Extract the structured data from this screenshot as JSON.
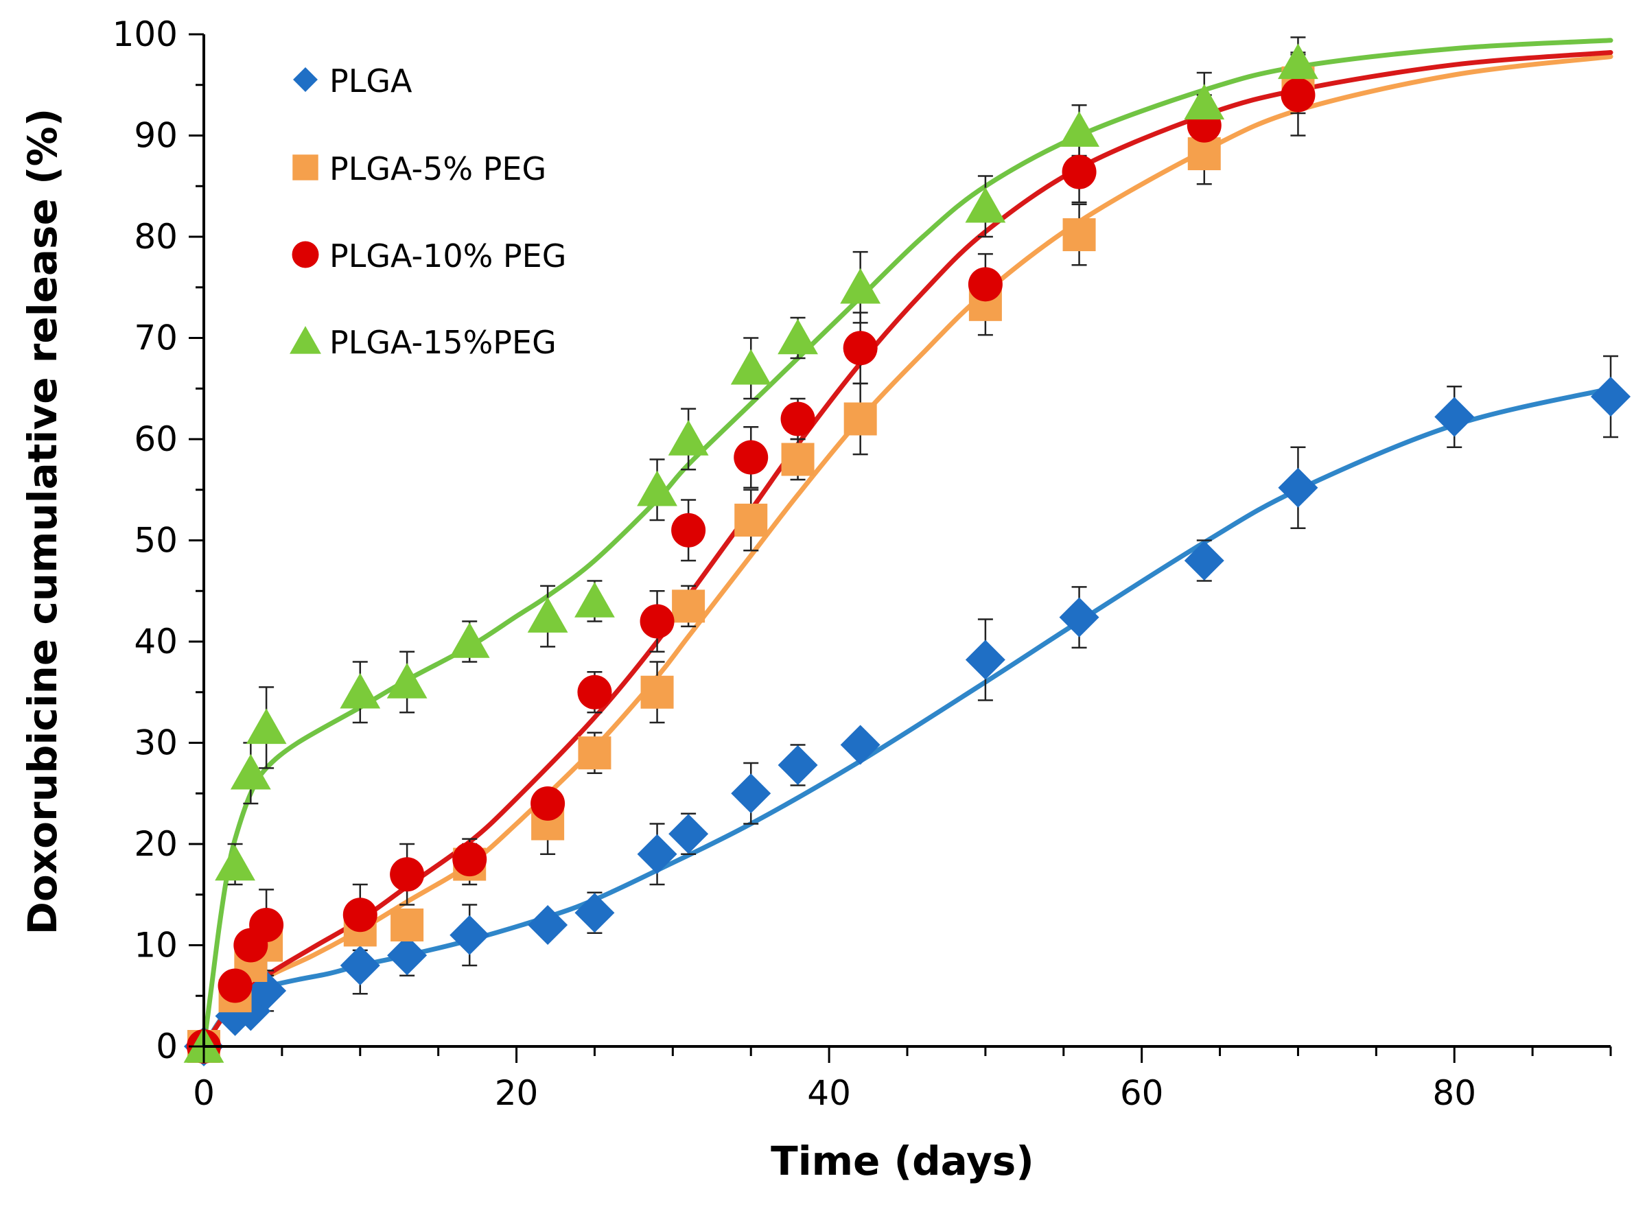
{
  "chart_data": {
    "type": "scatter",
    "title": "",
    "xlabel": "Time (days)",
    "ylabel": "Doxorubicine cumulative release (%)",
    "xlim": [
      0,
      90
    ],
    "ylim": [
      0,
      100
    ],
    "xticks": [
      0,
      20,
      40,
      60,
      80
    ],
    "yticks": [
      0,
      10,
      20,
      30,
      40,
      50,
      60,
      70,
      80,
      90,
      100
    ],
    "legend_position": "top-left",
    "series": [
      {
        "name": "PLGA",
        "color": "#1f6fc5",
        "line_color": "#2f86c9",
        "marker": "diamond",
        "x": [
          0,
          2,
          3,
          4,
          10,
          13,
          17,
          22,
          25,
          29,
          31,
          35,
          38,
          42,
          50,
          56,
          64,
          70,
          80,
          90
        ],
        "y": [
          0,
          3,
          3.5,
          5.5,
          8,
          9,
          11,
          12,
          13.2,
          19,
          21,
          25,
          27.8,
          29.8,
          38.2,
          42.4,
          48,
          55.2,
          62.2,
          64.2
        ],
        "err": [
          0,
          0,
          0,
          2,
          2.8,
          2,
          3,
          0,
          2,
          3,
          2,
          3,
          2,
          0,
          4,
          3,
          2,
          4,
          3,
          4
        ],
        "fit_x": [
          0,
          1,
          2,
          3,
          4,
          6,
          8,
          10,
          13,
          17,
          22,
          25,
          29,
          35,
          42,
          50,
          56,
          64,
          70,
          80,
          90
        ],
        "fit_y": [
          0,
          2.5,
          4.3,
          5.3,
          5.9,
          6.6,
          7.2,
          8.0,
          9.0,
          10.5,
          12.8,
          14.5,
          17.4,
          22.0,
          28.2,
          36.0,
          42.0,
          49.8,
          55.0,
          61.4,
          65.0
        ]
      },
      {
        "name": "PLGA-5% PEG",
        "color": "#f5a04c",
        "line_color": "#f7a24f",
        "marker": "square",
        "x": [
          0,
          2,
          3,
          4,
          10,
          13,
          17,
          22,
          25,
          29,
          31,
          35,
          38,
          42,
          50,
          56,
          64,
          70
        ],
        "y": [
          0,
          5,
          8,
          10,
          11.5,
          12,
          18,
          22,
          29,
          35,
          43.5,
          52,
          58,
          62,
          73.3,
          80.2,
          88.2,
          95.2
        ],
        "err": [
          0,
          0,
          0,
          3,
          2,
          0,
          2,
          3,
          2,
          3,
          2,
          3,
          2,
          3.5,
          3,
          3,
          3,
          3
        ],
        "fit_x": [
          0,
          2,
          4,
          7,
          10,
          13,
          17,
          20,
          25,
          29,
          31,
          35,
          38,
          42,
          46,
          50,
          56,
          64,
          70,
          80,
          90
        ],
        "fit_y": [
          0,
          4.5,
          6.8,
          9.0,
          11.5,
          14.3,
          18.0,
          22.0,
          29.5,
          36.5,
          40.5,
          48.5,
          54.5,
          62.0,
          68.5,
          74.5,
          81.5,
          88.5,
          92.5,
          96.0,
          97.8
        ]
      },
      {
        "name": "PLGA-10% PEG",
        "color": "#dd0000",
        "line_color": "#d81818",
        "marker": "circle",
        "x": [
          0,
          2,
          3,
          4,
          10,
          13,
          17,
          22,
          25,
          29,
          31,
          35,
          38,
          42,
          50,
          56,
          64,
          70
        ],
        "y": [
          0,
          6,
          10,
          12,
          13,
          17,
          18.5,
          24,
          35,
          42,
          51,
          58.2,
          62,
          69,
          75.3,
          86.4,
          91,
          94
        ],
        "err": [
          0,
          0,
          0,
          3.5,
          3,
          3,
          2,
          0,
          2,
          3,
          3,
          3,
          2,
          3.5,
          3,
          3,
          3,
          4
        ],
        "fit_x": [
          0,
          2,
          4,
          7,
          10,
          13,
          17,
          20,
          25,
          29,
          31,
          35,
          38,
          42,
          46,
          50,
          56,
          64,
          70,
          80,
          90
        ],
        "fit_y": [
          0,
          4.5,
          7.0,
          9.8,
          12.5,
          15.8,
          20.2,
          24.5,
          32.5,
          40.0,
          44.5,
          53.0,
          59.5,
          67.5,
          74.5,
          80.5,
          86.8,
          92.0,
          94.5,
          97.0,
          98.2
        ]
      },
      {
        "name": "PLGA-15%PEG",
        "color": "#7bcb3a",
        "line_color": "#71c443",
        "marker": "triangle",
        "x": [
          0,
          2,
          3,
          4,
          10,
          13,
          17,
          22,
          25,
          29,
          31,
          35,
          38,
          42,
          50,
          56,
          64,
          70
        ],
        "y": [
          0,
          18,
          27,
          31.5,
          35,
          36,
          40,
          42.5,
          44,
          55,
          60,
          67,
          70,
          75,
          83,
          90.5,
          93.2,
          97.2
        ],
        "err": [
          0,
          2,
          3,
          4,
          3,
          3,
          2,
          3,
          2,
          3,
          3,
          3,
          2,
          3.5,
          3,
          2.5,
          3,
          2.5
        ],
        "fit_x": [
          0,
          0.5,
          1,
          1.5,
          2,
          3,
          4,
          6,
          10,
          13,
          17,
          20,
          22,
          25,
          29,
          31,
          35,
          38,
          42,
          46,
          50,
          56,
          64,
          70,
          80,
          90
        ],
        "fit_y": [
          0,
          6,
          12,
          17,
          20.5,
          25,
          27.5,
          30,
          33.5,
          36.2,
          39.5,
          42.5,
          44.5,
          48,
          54,
          57.5,
          63.5,
          68,
          74,
          80,
          85,
          90,
          94.5,
          96.8,
          98.6,
          99.4
        ]
      }
    ]
  }
}
